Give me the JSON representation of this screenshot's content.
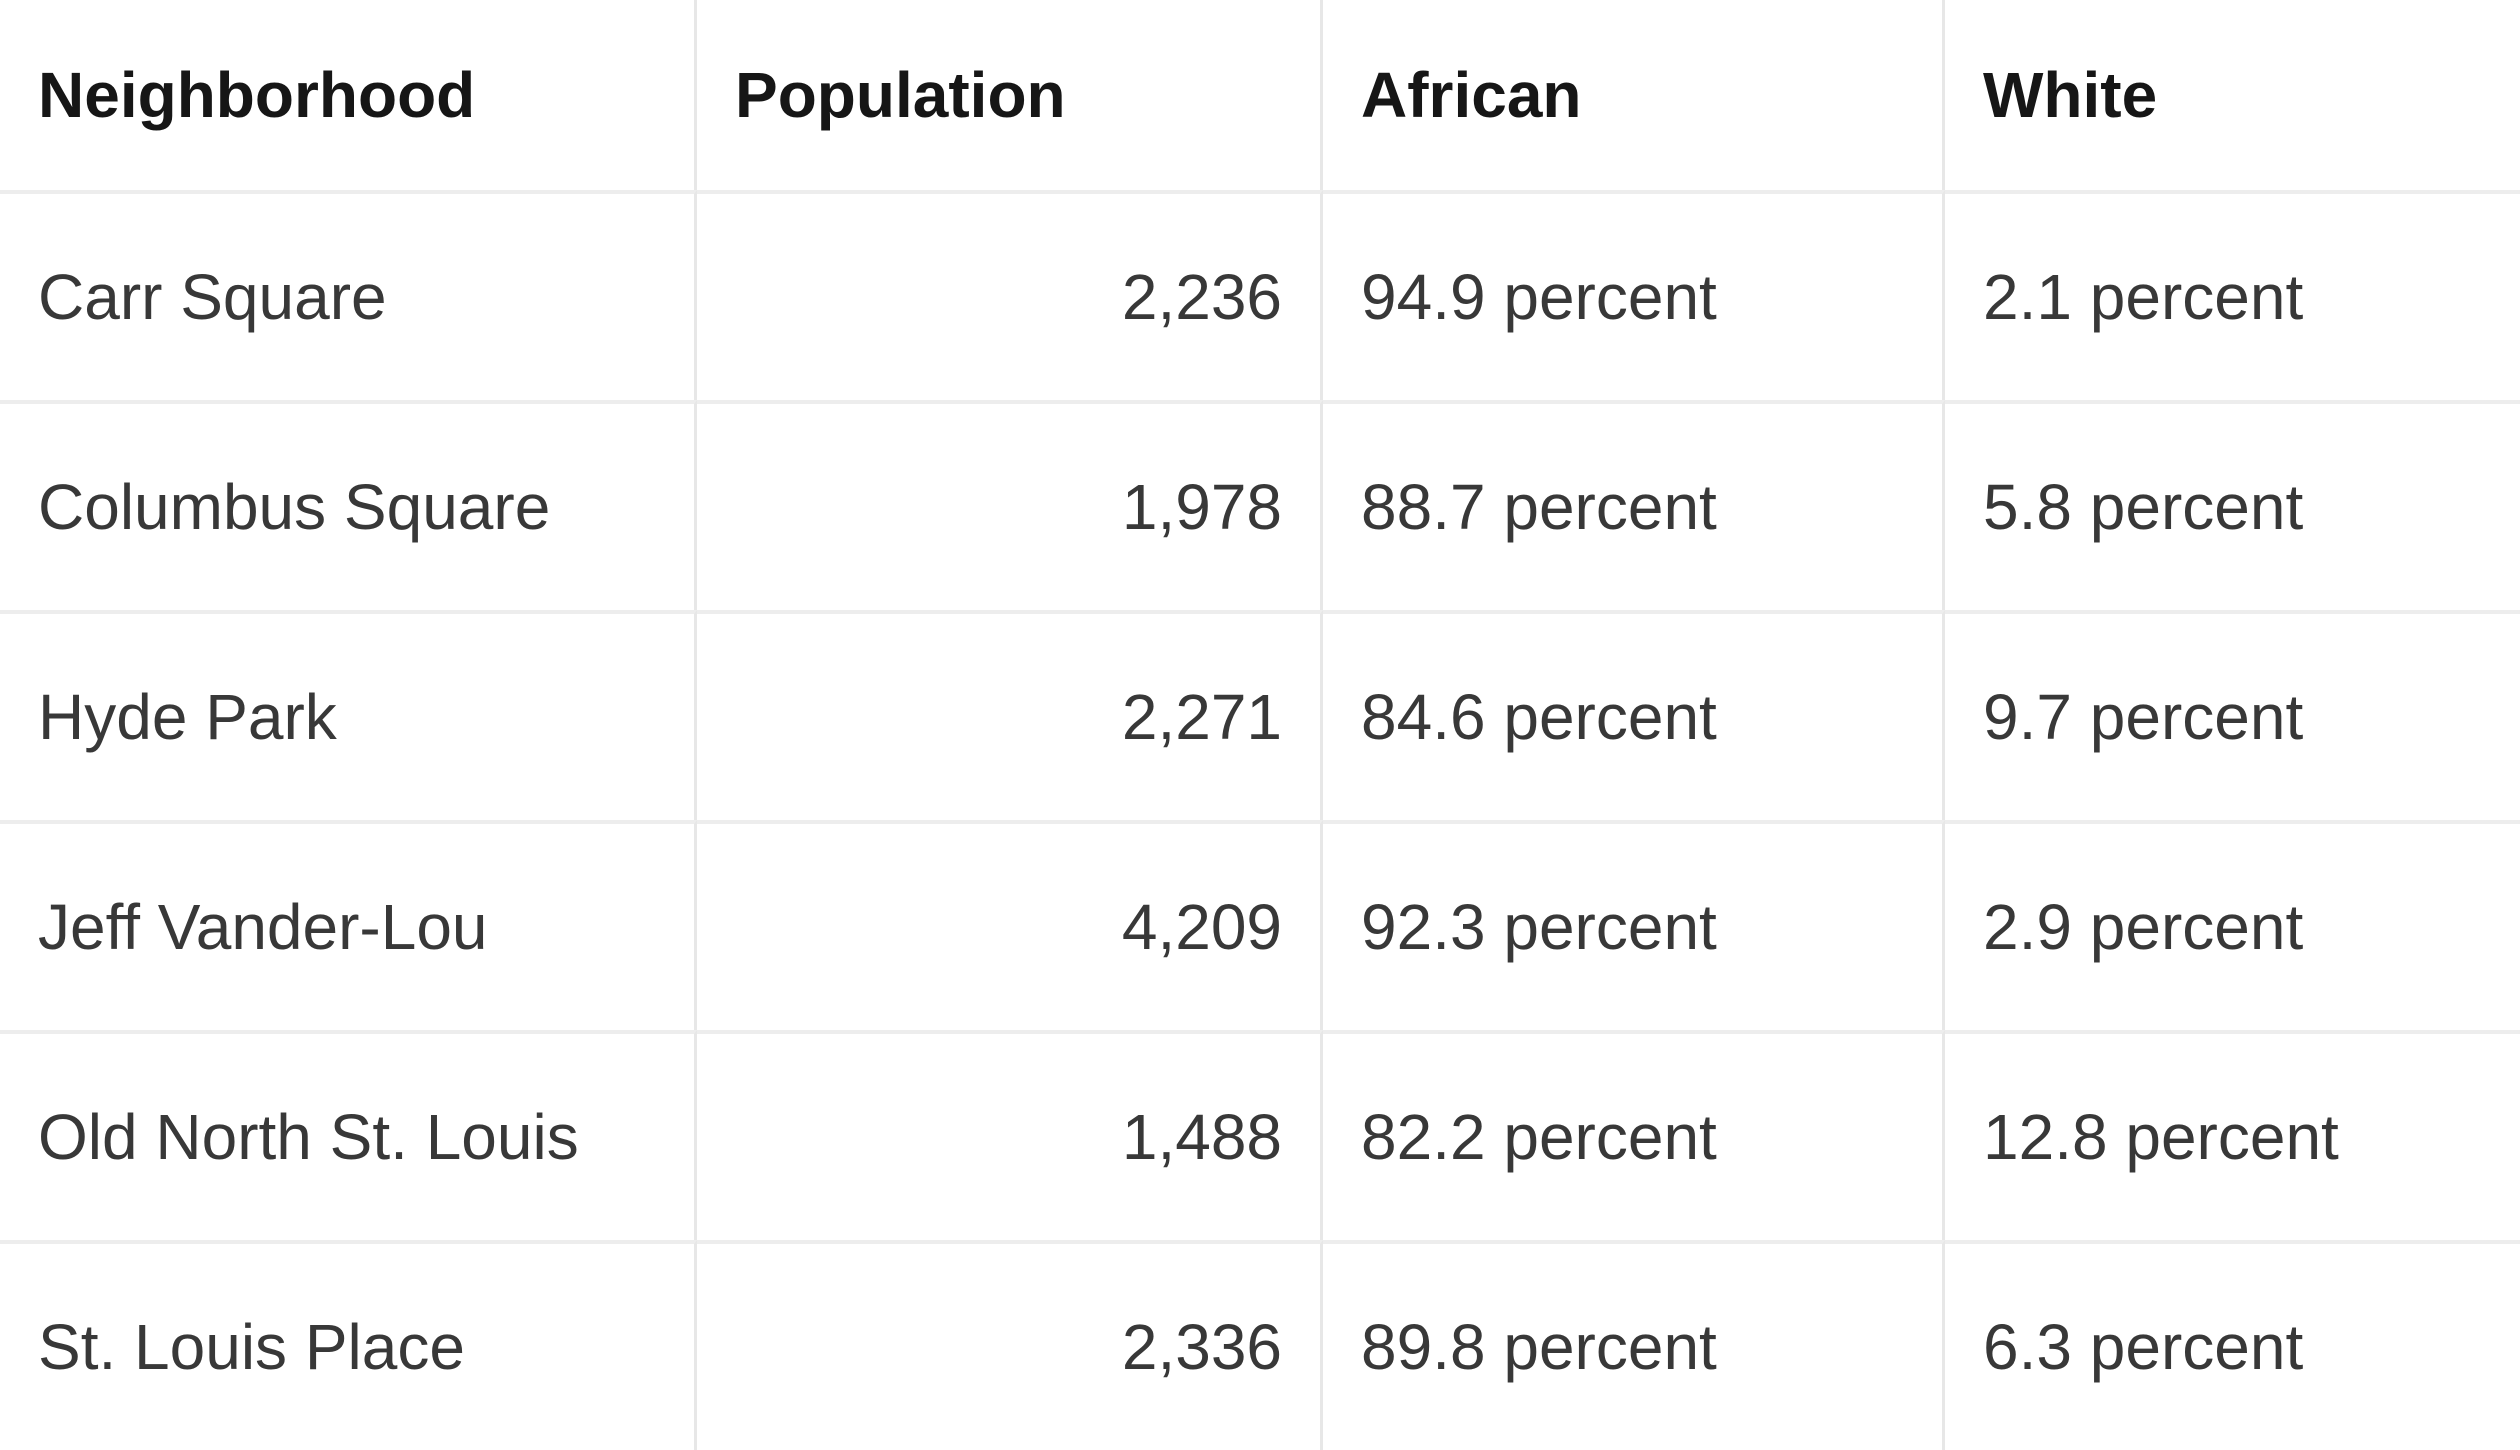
{
  "chart_data": {
    "type": "table",
    "title": "",
    "columns": [
      "Neighborhood",
      "Population",
      "African",
      "White"
    ],
    "rows": [
      [
        "Carr Square",
        "2,236",
        "94.9 percent",
        "2.1 percent"
      ],
      [
        "Columbus Square",
        "1,978",
        "88.7 percent",
        "5.8 percent"
      ],
      [
        "Hyde Park",
        "2,271",
        "84.6 percent",
        "9.7 percent"
      ],
      [
        "Jeff Vander-Lou",
        "4,209",
        "92.3 percent",
        "2.9 percent"
      ],
      [
        "Old North St. Louis",
        "1,488",
        "82.2 percent",
        "12.8 percent"
      ],
      [
        "St. Louis Place",
        "2,336",
        "89.8 percent",
        "6.3 percent"
      ]
    ],
    "numeric": {
      "population": [
        2236,
        1978,
        2271,
        4209,
        1488,
        2336
      ],
      "african_percent": [
        94.9,
        88.7,
        84.6,
        92.3,
        82.2,
        89.8
      ],
      "white_percent": [
        2.1,
        5.8,
        9.7,
        2.9,
        12.8,
        6.3
      ]
    }
  },
  "colors": {
    "background": "#ffffff",
    "body_text": "#383838",
    "header_text": "#161616",
    "border_v": "#e7e7e7",
    "border_h": "#ededed"
  }
}
